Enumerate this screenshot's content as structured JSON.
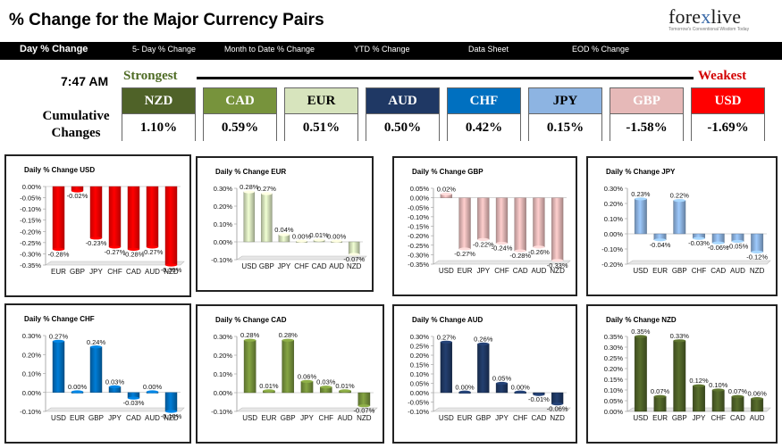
{
  "header": {
    "title": "% Change for the Major Currency Pairs",
    "logo_text_main": "fore",
    "logo_text_x": "x",
    "logo_text_end": "live",
    "logo_tagline": "Tomorrow's Conventional Wisdom Today"
  },
  "nav": {
    "items": [
      "Day % Change",
      "5- Day % Change",
      "Month to Date % Change",
      "YTD % Change",
      "Data Sheet",
      "EOD % Change"
    ]
  },
  "summary": {
    "time": "7:47 AM",
    "strongest_label": "Strongest",
    "weakest_label": "Weakest",
    "cumulative_line1": "Cumulative",
    "cumulative_line2": "Changes",
    "currencies": [
      {
        "code": "NZD",
        "value": "1.10%",
        "bg": "#4f6228",
        "fg": "#ffffff"
      },
      {
        "code": "CAD",
        "value": "0.59%",
        "bg": "#77933c",
        "fg": "#ffffff"
      },
      {
        "code": "EUR",
        "value": "0.51%",
        "bg": "#d7e4bd",
        "fg": "#000000"
      },
      {
        "code": "AUD",
        "value": "0.50%",
        "bg": "#1f3864",
        "fg": "#ffffff"
      },
      {
        "code": "CHF",
        "value": "0.42%",
        "bg": "#0070c0",
        "fg": "#ffffff"
      },
      {
        "code": "JPY",
        "value": "0.15%",
        "bg": "#8db4e2",
        "fg": "#000000"
      },
      {
        "code": "GBP",
        "value": "-1.58%",
        "bg": "#e6b9b8",
        "fg": "#ffffff"
      },
      {
        "code": "USD",
        "value": "-1.69%",
        "bg": "#ff0000",
        "fg": "#ffffff"
      }
    ]
  },
  "chart_data": [
    {
      "type": "bar",
      "title": "Daily % Change USD",
      "color": "#ff0000",
      "categories": [
        "EUR",
        "GBP",
        "JPY",
        "CHF",
        "CAD",
        "AUD",
        "NZD"
      ],
      "values": [
        -0.28,
        -0.02,
        -0.23,
        -0.27,
        -0.28,
        -0.27,
        -0.35
      ],
      "labels": [
        "-0.28%",
        "-0.02%",
        "-0.23%",
        "-0.27%",
        "-0.28%",
        "-0.27%",
        "-0.35%"
      ],
      "ylim": [
        -0.35,
        0.0
      ],
      "yticks": [
        0.0,
        -0.05,
        -0.1,
        -0.15,
        -0.2,
        -0.25,
        -0.3,
        -0.35
      ],
      "ytick_labels": [
        "0.00%",
        "-0.05%",
        "-0.10%",
        "-0.15%",
        "-0.20%",
        "-0.25%",
        "-0.30%",
        "-0.35%"
      ]
    },
    {
      "type": "bar",
      "title": "Daily % Change EUR",
      "color": "#d7e4bd",
      "categories": [
        "USD",
        "GBP",
        "JPY",
        "CHF",
        "CAD",
        "AUD",
        "NZD"
      ],
      "values": [
        0.28,
        0.27,
        0.04,
        0.0,
        0.01,
        0.0,
        -0.07
      ],
      "labels": [
        "0.28%",
        "0.27%",
        "0.04%",
        "0.00%",
        "0.01%",
        "0.00%",
        "-0.07%"
      ],
      "ylim": [
        -0.1,
        0.3
      ],
      "yticks": [
        0.3,
        0.2,
        0.1,
        0.0,
        -0.1
      ],
      "ytick_labels": [
        "0.30%",
        "0.20%",
        "0.10%",
        "0.00%",
        "-0.10%"
      ]
    },
    {
      "type": "bar",
      "title": "Daily % Change GBP",
      "color": "#e6b9b8",
      "categories": [
        "USD",
        "EUR",
        "JPY",
        "CHF",
        "CAD",
        "AUD",
        "NZD"
      ],
      "values": [
        0.02,
        -0.27,
        -0.22,
        -0.24,
        -0.28,
        -0.26,
        -0.33
      ],
      "labels": [
        "0.02%",
        "-0.27%",
        "-0.22%",
        "-0.24%",
        "-0.28%",
        "-0.26%",
        "-0.33%"
      ],
      "ylim": [
        -0.35,
        0.05
      ],
      "yticks": [
        0.05,
        0.0,
        -0.05,
        -0.1,
        -0.15,
        -0.2,
        -0.25,
        -0.3,
        -0.35
      ],
      "ytick_labels": [
        "0.05%",
        "0.00%",
        "-0.05%",
        "-0.10%",
        "-0.15%",
        "-0.20%",
        "-0.25%",
        "-0.30%",
        "-0.35%"
      ]
    },
    {
      "type": "bar",
      "title": "Daily % Change JPY",
      "color": "#8db4e2",
      "categories": [
        "USD",
        "EUR",
        "GBP",
        "CHF",
        "CAD",
        "AUD",
        "NZD"
      ],
      "values": [
        0.23,
        -0.04,
        0.22,
        -0.03,
        -0.06,
        -0.05,
        -0.12
      ],
      "labels": [
        "0.23%",
        "-0.04%",
        "0.22%",
        "-0.03%",
        "-0.06%",
        "-0.05%",
        "-0.12%"
      ],
      "ylim": [
        -0.2,
        0.3
      ],
      "yticks": [
        0.3,
        0.2,
        0.1,
        0.0,
        -0.1,
        -0.2
      ],
      "ytick_labels": [
        "0.30%",
        "0.20%",
        "0.10%",
        "0.00%",
        "-0.10%",
        "-0.20%"
      ]
    },
    {
      "type": "bar",
      "title": "Daily % Change CHF",
      "color": "#0070c0",
      "categories": [
        "USD",
        "EUR",
        "GBP",
        "JPY",
        "CAD",
        "AUD",
        "NZD"
      ],
      "values": [
        0.27,
        0.0,
        0.24,
        0.03,
        -0.03,
        0.0,
        -0.1
      ],
      "labels": [
        "0.27%",
        "0.00%",
        "0.24%",
        "0.03%",
        "-0.03%",
        "0.00%",
        "-0.10%"
      ],
      "ylim": [
        -0.1,
        0.3
      ],
      "yticks": [
        0.3,
        0.2,
        0.1,
        0.0,
        -0.1
      ],
      "ytick_labels": [
        "0.30%",
        "0.20%",
        "0.10%",
        "0.00%",
        "-0.10%"
      ]
    },
    {
      "type": "bar",
      "title": "Daily % Change CAD",
      "color": "#77933c",
      "categories": [
        "USD",
        "EUR",
        "GBP",
        "JPY",
        "CHF",
        "AUD",
        "NZD"
      ],
      "values": [
        0.28,
        0.01,
        0.28,
        0.06,
        0.03,
        0.01,
        -0.07
      ],
      "labels": [
        "0.28%",
        "0.01%",
        "0.28%",
        "0.06%",
        "0.03%",
        "0.01%",
        "-0.07%"
      ],
      "ylim": [
        -0.1,
        0.3
      ],
      "yticks": [
        0.3,
        0.2,
        0.1,
        0.0,
        -0.1
      ],
      "ytick_labels": [
        "0.30%",
        "0.20%",
        "0.10%",
        "0.00%",
        "-0.10%"
      ]
    },
    {
      "type": "bar",
      "title": "Daily % Change AUD",
      "color": "#1f3864",
      "categories": [
        "USD",
        "EUR",
        "GBP",
        "JPY",
        "CHF",
        "CAD",
        "NZD"
      ],
      "values": [
        0.27,
        0.0,
        0.26,
        0.05,
        0.0,
        -0.01,
        -0.06
      ],
      "labels": [
        "0.27%",
        "0.00%",
        "0.26%",
        "0.05%",
        "0.00%",
        "-0.01%",
        "-0.06%"
      ],
      "ylim": [
        -0.1,
        0.3
      ],
      "yticks": [
        0.3,
        0.25,
        0.2,
        0.15,
        0.1,
        0.05,
        0.0,
        -0.05,
        -0.1
      ],
      "ytick_labels": [
        "0.30%",
        "0.25%",
        "0.20%",
        "0.15%",
        "0.10%",
        "0.05%",
        "0.00%",
        "-0.05%",
        "-0.10%"
      ]
    },
    {
      "type": "bar",
      "title": "Daily % Change NZD",
      "color": "#4f6228",
      "categories": [
        "USD",
        "EUR",
        "GBP",
        "JPY",
        "CHF",
        "CAD",
        "AUD"
      ],
      "values": [
        0.35,
        0.07,
        0.33,
        0.12,
        0.1,
        0.07,
        0.06
      ],
      "labels": [
        "0.35%",
        "0.07%",
        "0.33%",
        "0.12%",
        "0.10%",
        "0.07%",
        "0.06%"
      ],
      "ylim": [
        0.0,
        0.35
      ],
      "yticks": [
        0.35,
        0.3,
        0.25,
        0.2,
        0.15,
        0.1,
        0.05,
        0.0
      ],
      "ytick_labels": [
        "0.35%",
        "0.30%",
        "0.25%",
        "0.20%",
        "0.15%",
        "0.10%",
        "0.05%",
        "0.00%"
      ]
    }
  ]
}
